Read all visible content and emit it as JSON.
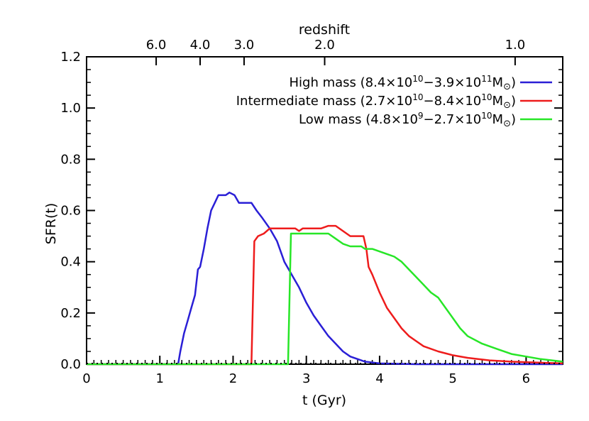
{
  "chart_data": {
    "type": "line",
    "xlabel": "t (Gyr)",
    "ylabel": "SFR(t)",
    "xlim": [
      0,
      6.5
    ],
    "ylim": [
      0,
      1.2
    ],
    "x_ticks": [
      "0",
      "1",
      "2",
      "3",
      "4",
      "5",
      "6"
    ],
    "y_ticks": [
      "0.0",
      "0.2",
      "0.4",
      "0.6",
      "0.8",
      "1.0",
      "1.2"
    ],
    "top_axis": {
      "label": "redshift",
      "ticks": [
        {
          "label": "6.0",
          "t": 0.95
        },
        {
          "label": "4.0",
          "t": 1.55
        },
        {
          "label": "3.0",
          "t": 2.15
        },
        {
          "label": "2.0",
          "t": 3.25
        },
        {
          "label": "1.0",
          "t": 5.85
        }
      ]
    },
    "legend_position": "top-right",
    "series": [
      {
        "name": "High mass (8.4×10¹⁰−3.9×10¹¹M⊙)",
        "legend_text": "High mass (8.4×10",
        "legend_sup1": "10",
        "legend_mid": "−3.9×10",
        "legend_sup2": "11",
        "legend_tail": "M",
        "color": "#2a1fd6",
        "points": [
          [
            0,
            0
          ],
          [
            1.25,
            0
          ],
          [
            1.28,
            0.05
          ],
          [
            1.33,
            0.12
          ],
          [
            1.38,
            0.17
          ],
          [
            1.43,
            0.22
          ],
          [
            1.48,
            0.27
          ],
          [
            1.52,
            0.37
          ],
          [
            1.55,
            0.38
          ],
          [
            1.6,
            0.45
          ],
          [
            1.65,
            0.53
          ],
          [
            1.7,
            0.6
          ],
          [
            1.75,
            0.63
          ],
          [
            1.8,
            0.66
          ],
          [
            1.9,
            0.66
          ],
          [
            1.95,
            0.67
          ],
          [
            2.02,
            0.66
          ],
          [
            2.08,
            0.63
          ],
          [
            2.25,
            0.63
          ],
          [
            2.32,
            0.6
          ],
          [
            2.4,
            0.57
          ],
          [
            2.5,
            0.53
          ],
          [
            2.6,
            0.48
          ],
          [
            2.7,
            0.4
          ],
          [
            2.8,
            0.35
          ],
          [
            2.9,
            0.3
          ],
          [
            3.0,
            0.24
          ],
          [
            3.1,
            0.19
          ],
          [
            3.2,
            0.15
          ],
          [
            3.3,
            0.11
          ],
          [
            3.4,
            0.08
          ],
          [
            3.5,
            0.05
          ],
          [
            3.6,
            0.03
          ],
          [
            3.7,
            0.02
          ],
          [
            3.8,
            0.01
          ],
          [
            4.0,
            0.003
          ],
          [
            4.5,
            0
          ],
          [
            6.5,
            0
          ]
        ]
      },
      {
        "name": "Intermediate mass (2.7×10¹⁰−8.4×10¹⁰M⊙)",
        "legend_text": "Intermediate mass (2.7×10",
        "legend_sup1": "10",
        "legend_mid": "−8.4×10",
        "legend_sup2": "10",
        "legend_tail": "M",
        "color": "#ee1c1c",
        "points": [
          [
            0,
            0
          ],
          [
            2.25,
            0
          ],
          [
            2.29,
            0.48
          ],
          [
            2.34,
            0.5
          ],
          [
            2.42,
            0.51
          ],
          [
            2.5,
            0.53
          ],
          [
            2.7,
            0.53
          ],
          [
            2.85,
            0.53
          ],
          [
            2.9,
            0.52
          ],
          [
            2.95,
            0.53
          ],
          [
            3.1,
            0.53
          ],
          [
            3.2,
            0.53
          ],
          [
            3.3,
            0.54
          ],
          [
            3.4,
            0.54
          ],
          [
            3.5,
            0.52
          ],
          [
            3.6,
            0.5
          ],
          [
            3.7,
            0.5
          ],
          [
            3.78,
            0.5
          ],
          [
            3.82,
            0.45
          ],
          [
            3.85,
            0.38
          ],
          [
            3.9,
            0.35
          ],
          [
            4.0,
            0.28
          ],
          [
            4.1,
            0.22
          ],
          [
            4.2,
            0.18
          ],
          [
            4.3,
            0.14
          ],
          [
            4.4,
            0.11
          ],
          [
            4.5,
            0.09
          ],
          [
            4.6,
            0.07
          ],
          [
            4.8,
            0.05
          ],
          [
            5.0,
            0.035
          ],
          [
            5.2,
            0.025
          ],
          [
            5.5,
            0.015
          ],
          [
            5.8,
            0.01
          ],
          [
            6.0,
            0.008
          ],
          [
            6.5,
            0.003
          ]
        ]
      },
      {
        "name": "Low mass (4.8×10⁹−2.7×10¹⁰M⊙)",
        "legend_text": "Low mass (4.8×10",
        "legend_sup1": "9",
        "legend_mid": "−2.7×10",
        "legend_sup2": "10",
        "legend_tail": "M",
        "color": "#27e627",
        "points": [
          [
            0,
            0
          ],
          [
            2.75,
            0
          ],
          [
            2.79,
            0.51
          ],
          [
            3.0,
            0.51
          ],
          [
            3.3,
            0.51
          ],
          [
            3.4,
            0.49
          ],
          [
            3.5,
            0.47
          ],
          [
            3.6,
            0.46
          ],
          [
            3.75,
            0.46
          ],
          [
            3.8,
            0.45
          ],
          [
            3.9,
            0.45
          ],
          [
            4.0,
            0.44
          ],
          [
            4.1,
            0.43
          ],
          [
            4.2,
            0.42
          ],
          [
            4.3,
            0.4
          ],
          [
            4.4,
            0.37
          ],
          [
            4.5,
            0.34
          ],
          [
            4.6,
            0.31
          ],
          [
            4.7,
            0.28
          ],
          [
            4.8,
            0.26
          ],
          [
            4.9,
            0.22
          ],
          [
            5.0,
            0.18
          ],
          [
            5.1,
            0.14
          ],
          [
            5.2,
            0.11
          ],
          [
            5.4,
            0.08
          ],
          [
            5.6,
            0.06
          ],
          [
            5.8,
            0.04
          ],
          [
            6.0,
            0.03
          ],
          [
            6.2,
            0.02
          ],
          [
            6.5,
            0.01
          ]
        ]
      }
    ],
    "legend_sun_symbol": "⊙"
  }
}
